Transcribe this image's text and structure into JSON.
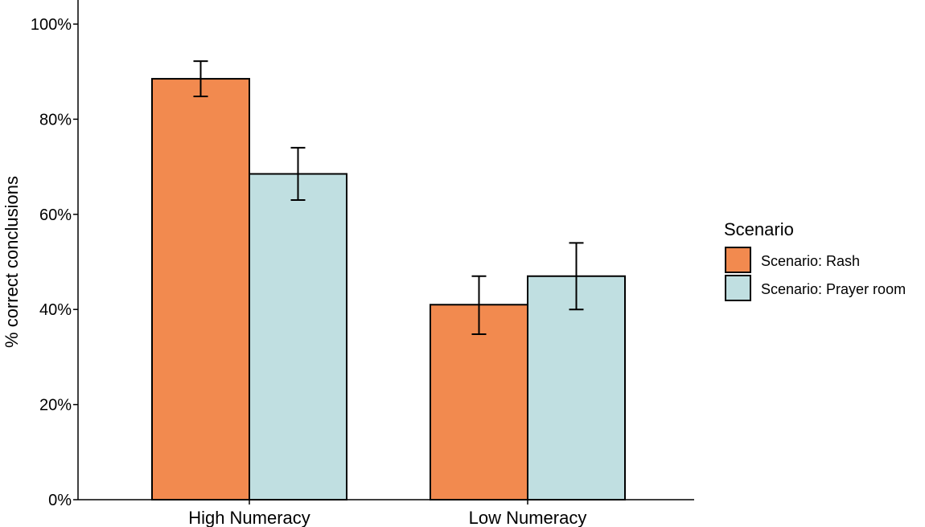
{
  "chart_data": {
    "type": "bar",
    "ylabel": "% correct conclusions",
    "xlabel": "",
    "ylim": [
      0,
      100
    ],
    "yticks": [
      0,
      20,
      40,
      60,
      80,
      100
    ],
    "ytick_labels": [
      "0%",
      "20%",
      "40%",
      "60%",
      "80%",
      "100%"
    ],
    "categories": [
      "High Numeracy",
      "Low Numeracy"
    ],
    "series": [
      {
        "name": "Scenario: Rash",
        "color": "#f28a4f",
        "values": [
          88.5,
          41
        ],
        "error_low": [
          84.8,
          34.8
        ],
        "error_high": [
          92.2,
          47
        ]
      },
      {
        "name": "Scenario: Prayer room",
        "color": "#c0dfe1",
        "values": [
          68.5,
          47
        ],
        "error_low": [
          63,
          40
        ],
        "error_high": [
          74,
          54
        ]
      }
    ],
    "legend": {
      "title": "Scenario",
      "placement": "right"
    },
    "grid": false
  }
}
